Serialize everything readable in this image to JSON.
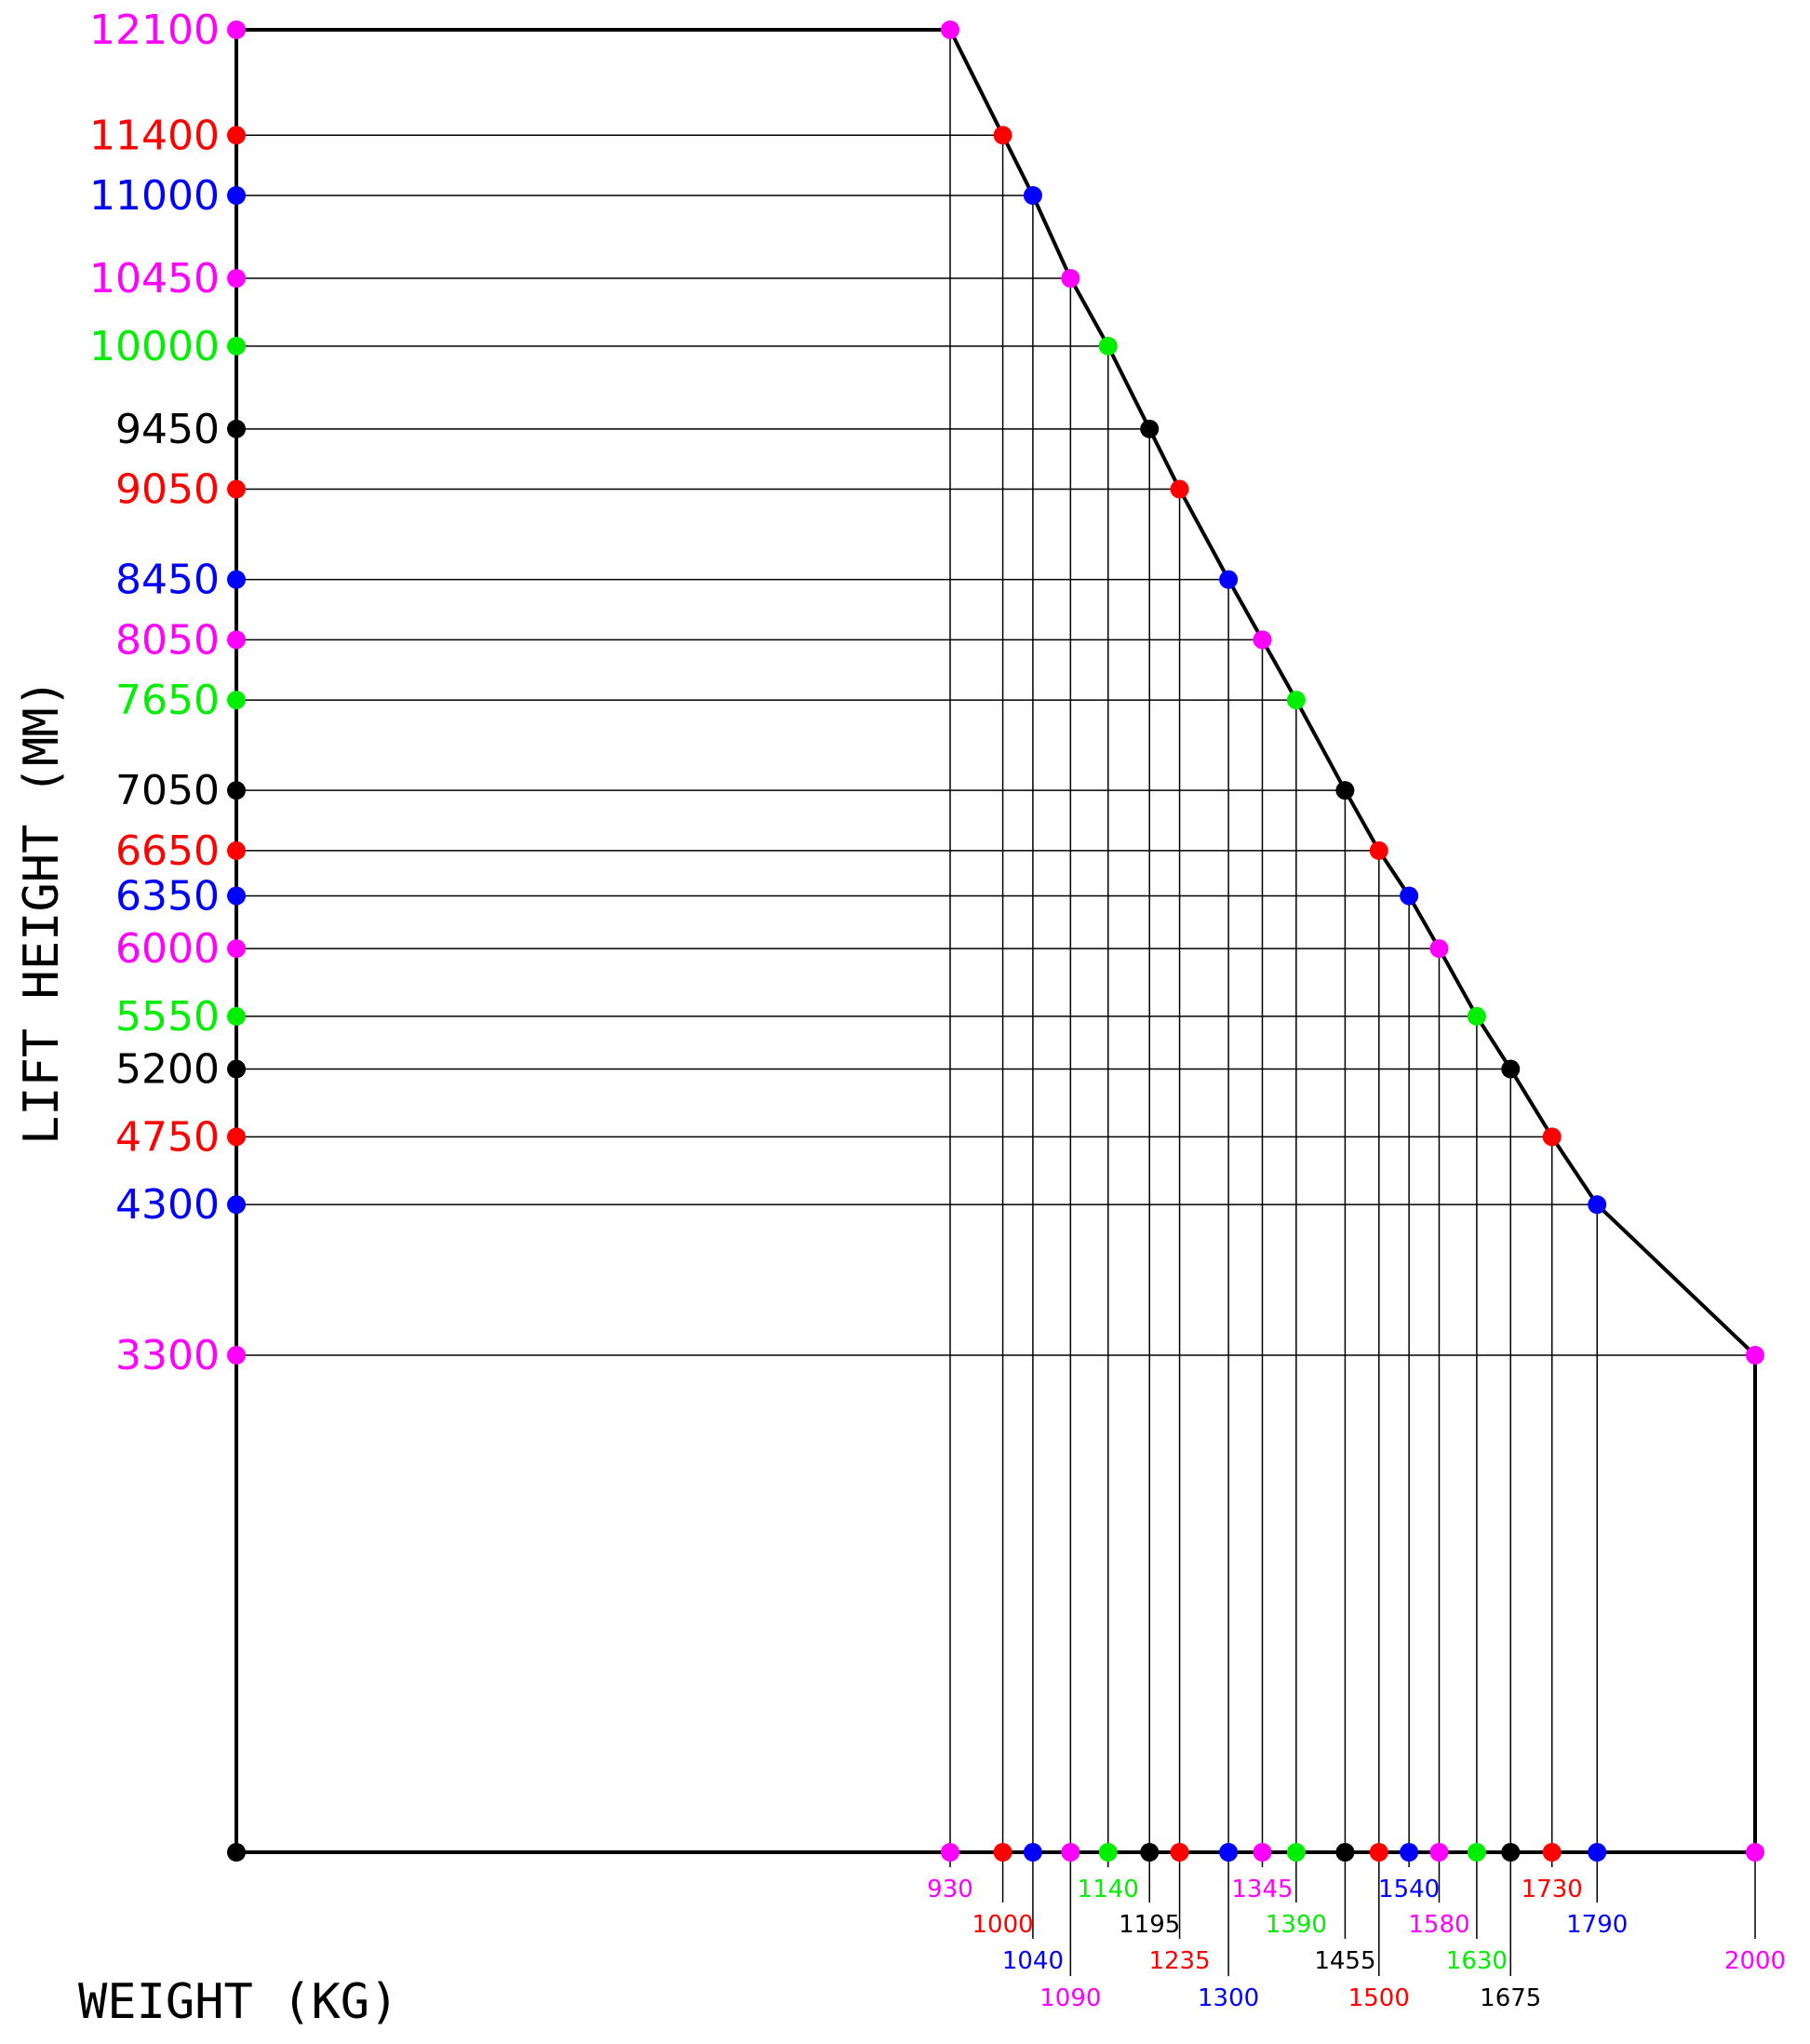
{
  "chart_data": {
    "type": "line",
    "xlabel": "WEIGHT (KG)",
    "ylabel": "LIFT HEIGHT (MM)",
    "ylim": [
      0,
      12100
    ],
    "grid": false,
    "points": [
      {
        "x": 930,
        "y": 12100,
        "color": "#ff00ff"
      },
      {
        "x": 1000,
        "y": 11400,
        "color": "#ff0000"
      },
      {
        "x": 1040,
        "y": 11000,
        "color": "#0000ff"
      },
      {
        "x": 1090,
        "y": 10450,
        "color": "#ff00ff"
      },
      {
        "x": 1140,
        "y": 10000,
        "color": "#00ee00"
      },
      {
        "x": 1195,
        "y": 9450,
        "color": "#000000"
      },
      {
        "x": 1235,
        "y": 9050,
        "color": "#ff0000"
      },
      {
        "x": 1300,
        "y": 8450,
        "color": "#0000ff"
      },
      {
        "x": 1345,
        "y": 8050,
        "color": "#ff00ff"
      },
      {
        "x": 1390,
        "y": 7650,
        "color": "#00ee00"
      },
      {
        "x": 1455,
        "y": 7050,
        "color": "#000000"
      },
      {
        "x": 1500,
        "y": 6650,
        "color": "#ff0000"
      },
      {
        "x": 1540,
        "y": 6350,
        "color": "#0000ff"
      },
      {
        "x": 1580,
        "y": 6000,
        "color": "#ff00ff"
      },
      {
        "x": 1630,
        "y": 5550,
        "color": "#00ee00"
      },
      {
        "x": 1675,
        "y": 5200,
        "color": "#000000"
      },
      {
        "x": 1730,
        "y": 4750,
        "color": "#ff0000"
      },
      {
        "x": 1790,
        "y": 4300,
        "color": "#0000ff"
      },
      {
        "x": 2000,
        "y": 3300,
        "color": "#ff00ff"
      }
    ]
  }
}
